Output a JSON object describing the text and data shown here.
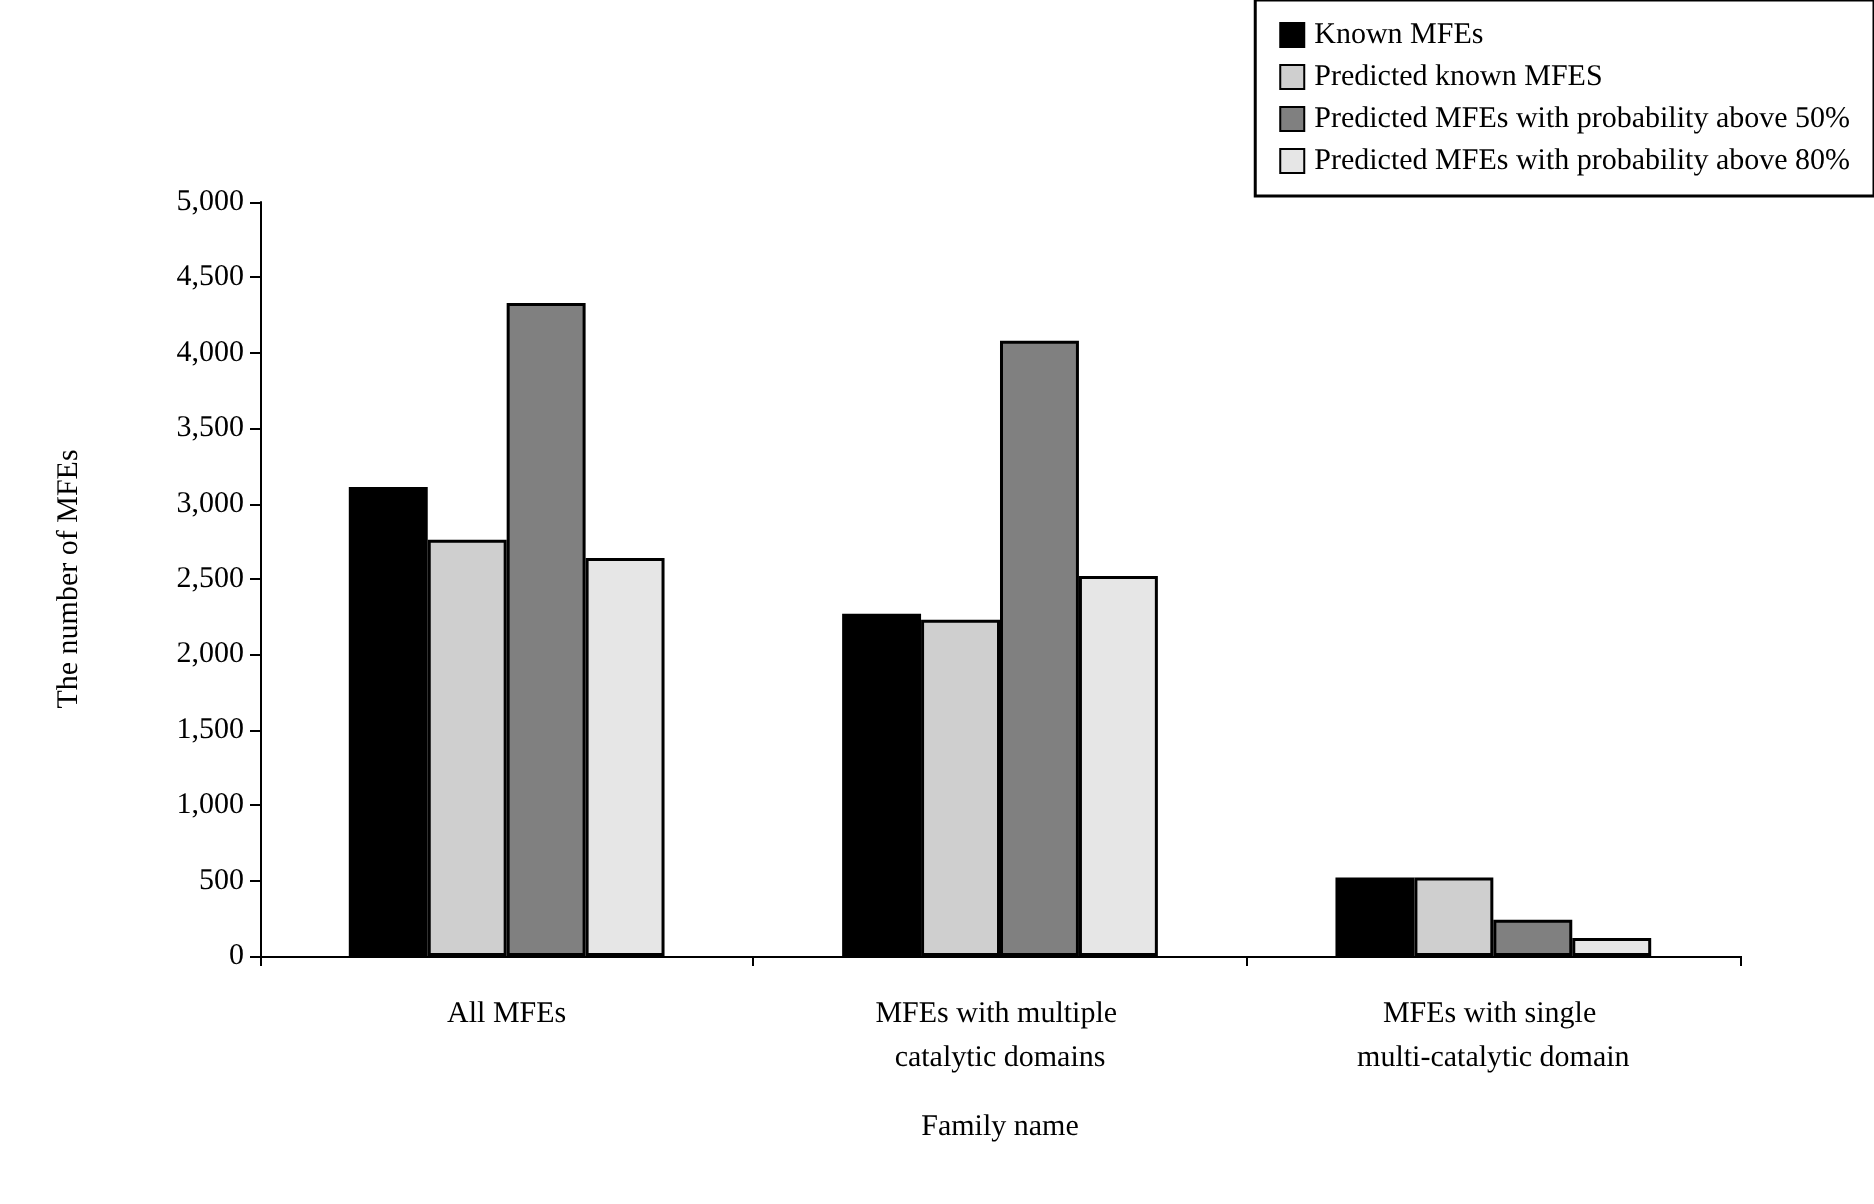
{
  "chart_data": {
    "type": "bar",
    "xlabel": "Family name",
    "ylabel": "The number of MFEs",
    "categories": [
      "All MFEs",
      "MFEs with multiple catalytic domains",
      "MFEs with single multi-catalytic domain"
    ],
    "series": [
      {
        "name": "Known MFEs",
        "color": "#000000",
        "values": [
          3110,
          2270,
          520
        ]
      },
      {
        "name": "Predicted known MFES",
        "color": "#cfcfcf",
        "values": [
          2760,
          2230,
          520
        ]
      },
      {
        "name": "Predicted MFEs with probability above 50%",
        "color": "#808080",
        "values": [
          4330,
          4080,
          240
        ]
      },
      {
        "name": "Predicted MFEs with probability above 80%",
        "color": "#e6e6e6",
        "values": [
          2640,
          2520,
          120
        ]
      }
    ],
    "ylim": [
      0,
      5000
    ],
    "yticks": [
      0,
      500,
      {
        "value": 1000,
        "label": "1,000"
      },
      {
        "value": 1500,
        "label": "1,500"
      },
      {
        "value": 2000,
        "label": "2,000"
      },
      {
        "value": 2500,
        "label": "2,500"
      },
      {
        "value": 3000,
        "label": "3,000"
      },
      {
        "value": 3500,
        "label": "3,500"
      },
      {
        "value": 4000,
        "label": "4,000"
      },
      {
        "value": 4500,
        "label": "4,500"
      },
      {
        "value": 5000,
        "label": "5,000"
      }
    ],
    "grid": false,
    "legend": "top right"
  }
}
